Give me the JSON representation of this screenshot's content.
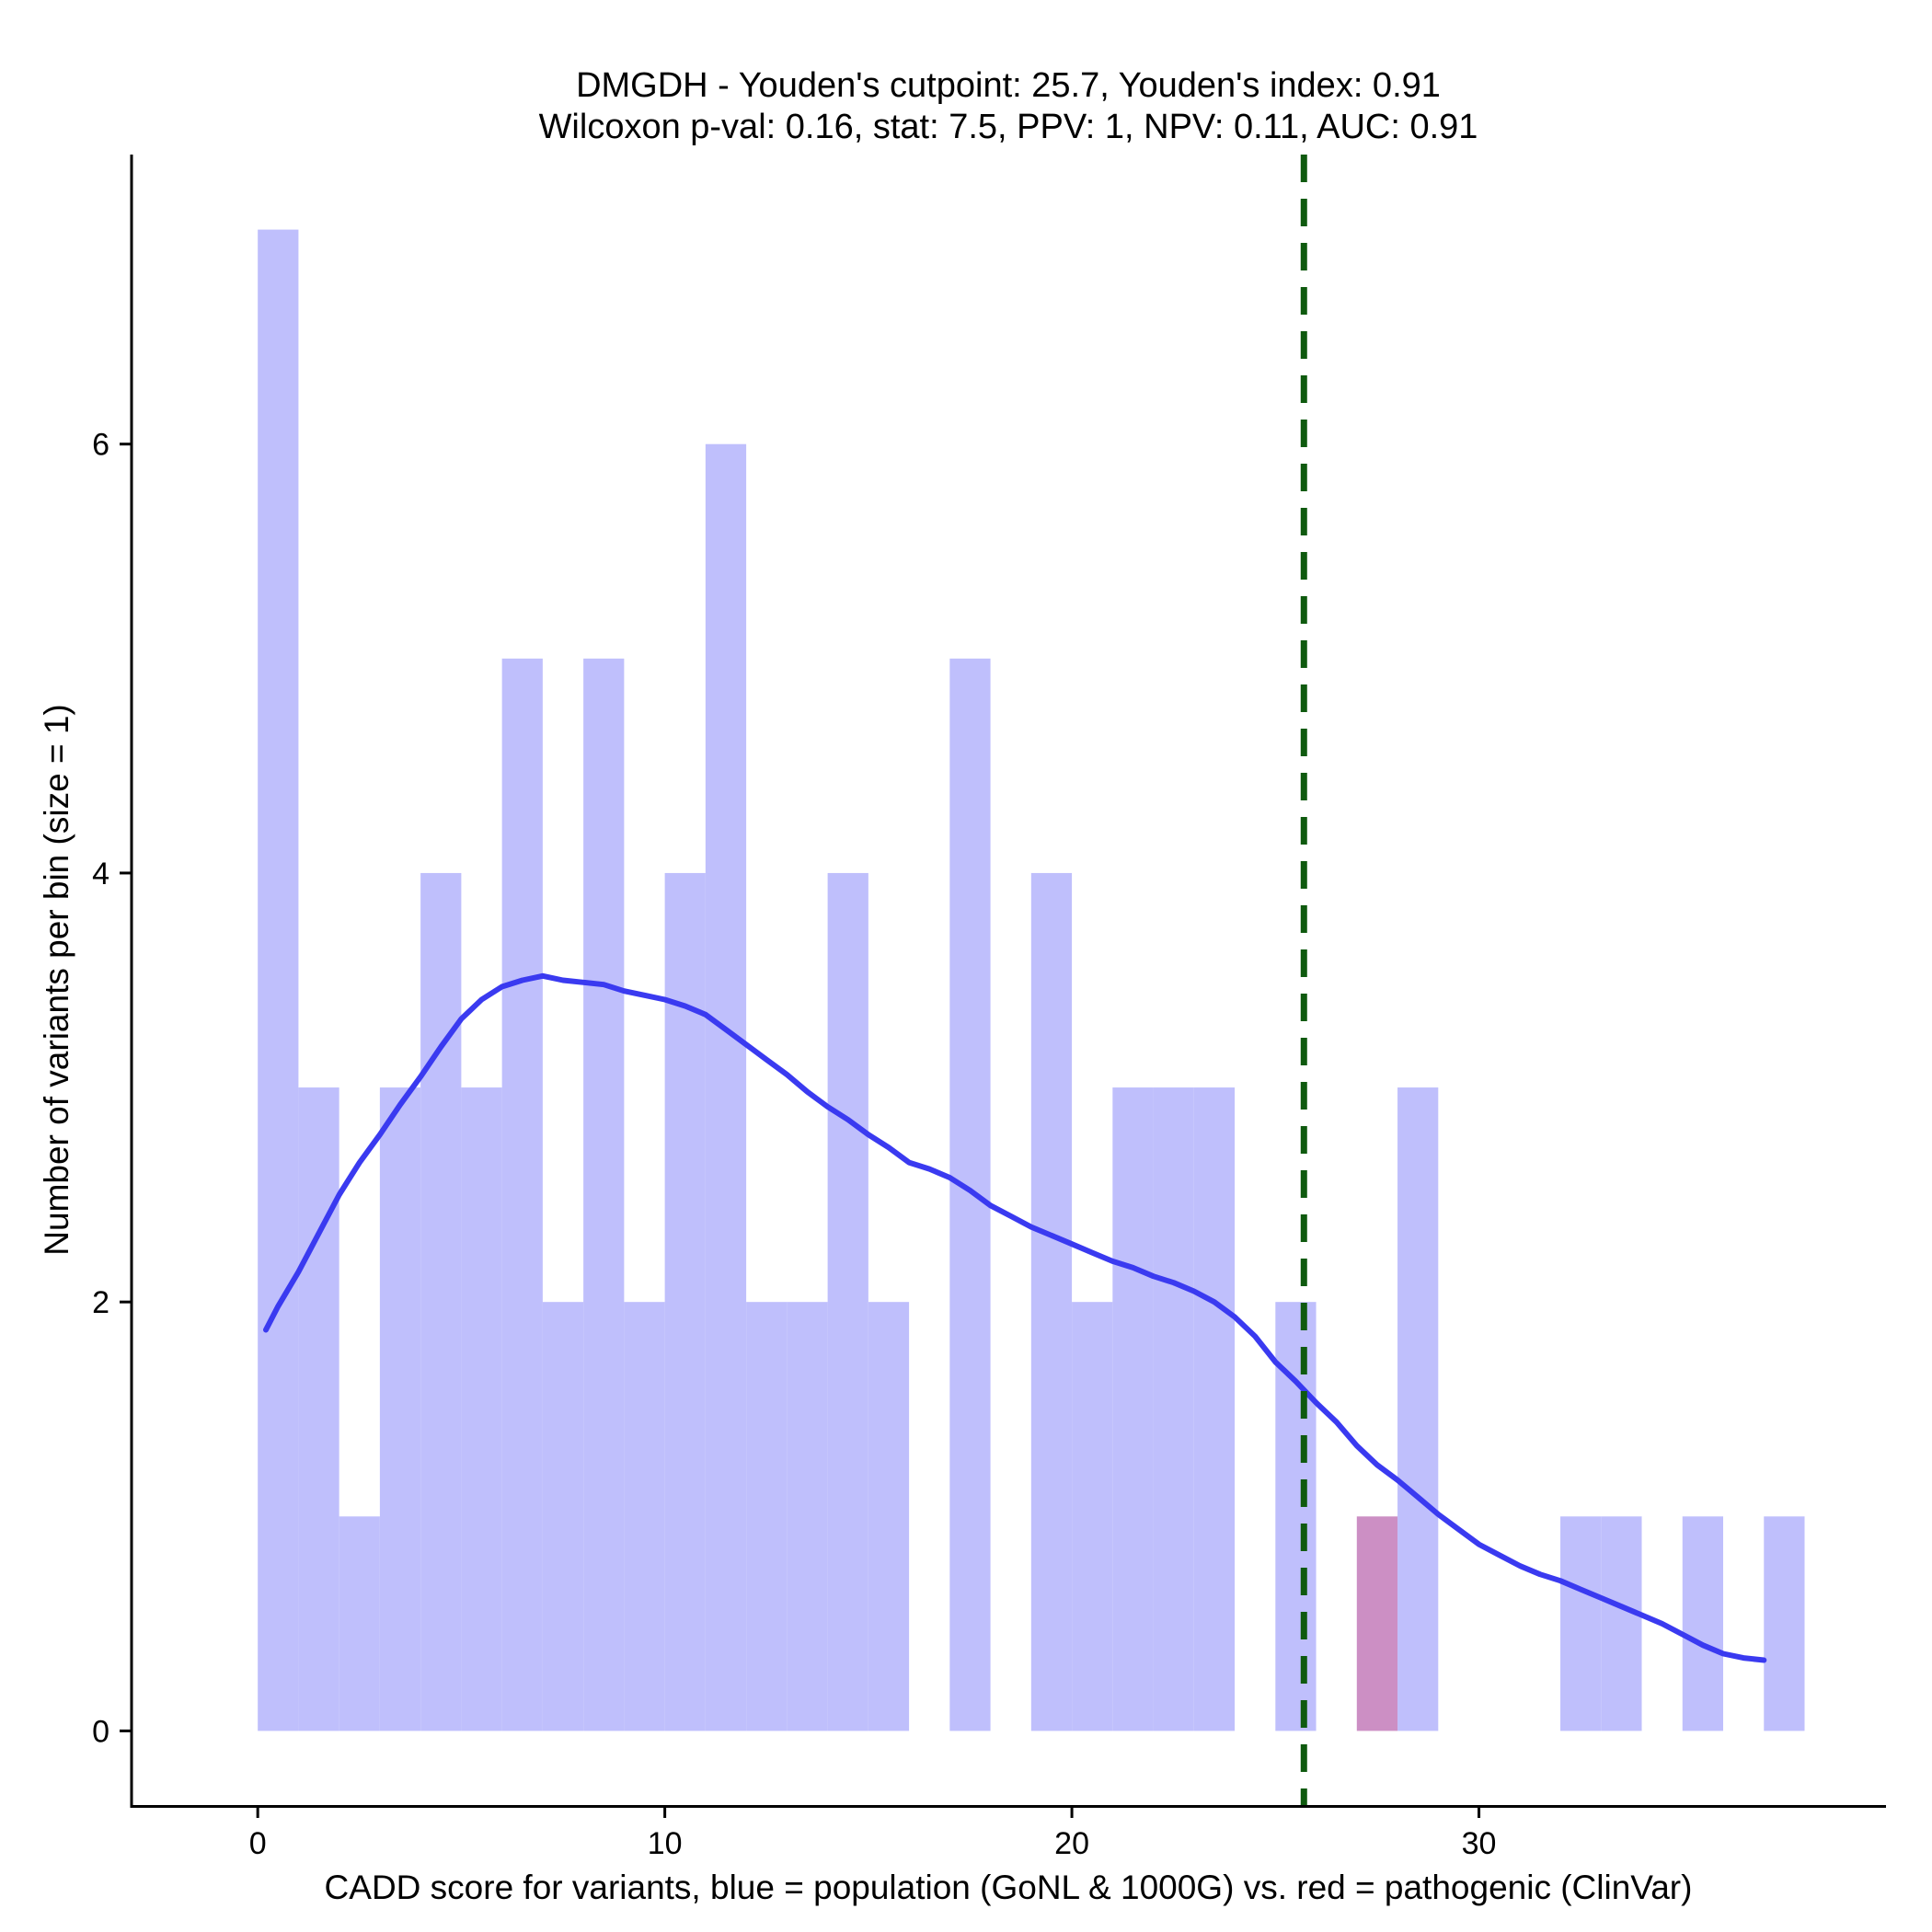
{
  "chart_data": {
    "type": "histogram",
    "title": "DMGDH - Youden's cutpoint: 25.7, Youden's index: 0.91",
    "subtitle": "Wilcoxon p-val: 0.16, stat: 7.5, PPV: 1, NPV: 0.11, AUC: 0.91",
    "xlabel": "CADD score for variants, blue = population (GoNL & 1000G) vs. red = pathogenic (ClinVar)",
    "ylabel": "Number of variants per bin (size = 1)",
    "xlim": [
      -3.1,
      40
    ],
    "ylim": [
      -0.35,
      7.35
    ],
    "xticks": [
      0,
      10,
      20,
      30
    ],
    "xtick_labels": [
      "0",
      "10",
      "20",
      "30"
    ],
    "yticks": [
      0,
      2,
      4,
      6
    ],
    "ytick_labels": [
      "0",
      "2",
      "4",
      "6"
    ],
    "bin_width": 1,
    "series": [
      {
        "name": "population (GoNL & 1000G)",
        "color": "#bfbffc",
        "bins": [
          {
            "start": 0,
            "count": 7
          },
          {
            "start": 1,
            "count": 3
          },
          {
            "start": 2,
            "count": 1
          },
          {
            "start": 3,
            "count": 3
          },
          {
            "start": 4,
            "count": 4
          },
          {
            "start": 5,
            "count": 3
          },
          {
            "start": 6,
            "count": 5
          },
          {
            "start": 7,
            "count": 2
          },
          {
            "start": 8,
            "count": 5
          },
          {
            "start": 9,
            "count": 2
          },
          {
            "start": 10,
            "count": 4
          },
          {
            "start": 11,
            "count": 6
          },
          {
            "start": 12,
            "count": 2
          },
          {
            "start": 13,
            "count": 2
          },
          {
            "start": 14,
            "count": 4
          },
          {
            "start": 15,
            "count": 2
          },
          {
            "start": 17,
            "count": 5
          },
          {
            "start": 19,
            "count": 4
          },
          {
            "start": 20,
            "count": 2
          },
          {
            "start": 21,
            "count": 3
          },
          {
            "start": 22,
            "count": 3
          },
          {
            "start": 23,
            "count": 3
          },
          {
            "start": 25,
            "count": 2
          },
          {
            "start": 28,
            "count": 3
          },
          {
            "start": 32,
            "count": 1
          },
          {
            "start": 33,
            "count": 1
          },
          {
            "start": 35,
            "count": 1
          },
          {
            "start": 37,
            "count": 1
          }
        ]
      },
      {
        "name": "pathogenic (ClinVar)",
        "color": "#cc8fc4",
        "bins": [
          {
            "start": 27,
            "count": 1
          }
        ]
      }
    ],
    "density_curve": {
      "color": "#3a3af0",
      "x": [
        0.2,
        0.5,
        1.0,
        1.5,
        2.0,
        2.5,
        3.0,
        3.5,
        4.0,
        4.5,
        5.0,
        5.5,
        6.0,
        6.5,
        7.0,
        7.5,
        8.0,
        8.5,
        9.0,
        9.5,
        10.0,
        10.5,
        11.0,
        11.5,
        12.0,
        12.5,
        13.0,
        13.5,
        14.0,
        14.5,
        15.0,
        15.5,
        16.0,
        16.5,
        17.0,
        17.5,
        18.0,
        18.5,
        19.0,
        19.5,
        20.0,
        20.5,
        21.0,
        21.5,
        22.0,
        22.5,
        23.0,
        23.5,
        24.0,
        24.5,
        25.0,
        25.5,
        26.0,
        26.5,
        27.0,
        27.5,
        28.0,
        28.5,
        29.0,
        29.5,
        30.0,
        30.5,
        31.0,
        31.5,
        32.0,
        32.5,
        33.0,
        33.5,
        34.0,
        34.5,
        35.0,
        35.5,
        36.0,
        36.5,
        37.0
      ],
      "y": [
        1.87,
        1.98,
        2.14,
        2.32,
        2.5,
        2.65,
        2.78,
        2.92,
        3.05,
        3.19,
        3.32,
        3.41,
        3.47,
        3.5,
        3.52,
        3.5,
        3.49,
        3.48,
        3.45,
        3.43,
        3.41,
        3.38,
        3.34,
        3.27,
        3.2,
        3.13,
        3.06,
        2.98,
        2.91,
        2.85,
        2.78,
        2.72,
        2.65,
        2.62,
        2.58,
        2.52,
        2.45,
        2.4,
        2.35,
        2.31,
        2.27,
        2.23,
        2.19,
        2.16,
        2.12,
        2.09,
        2.05,
        2.0,
        1.93,
        1.84,
        1.72,
        1.63,
        1.53,
        1.44,
        1.33,
        1.24,
        1.17,
        1.09,
        1.01,
        0.94,
        0.87,
        0.82,
        0.77,
        0.73,
        0.7,
        0.66,
        0.62,
        0.58,
        0.54,
        0.5,
        0.45,
        0.4,
        0.36,
        0.34,
        0.33
      ]
    },
    "cutpoint": {
      "x": 25.7,
      "color": "#0f5a0f",
      "style": "dashed"
    },
    "grid": false
  }
}
